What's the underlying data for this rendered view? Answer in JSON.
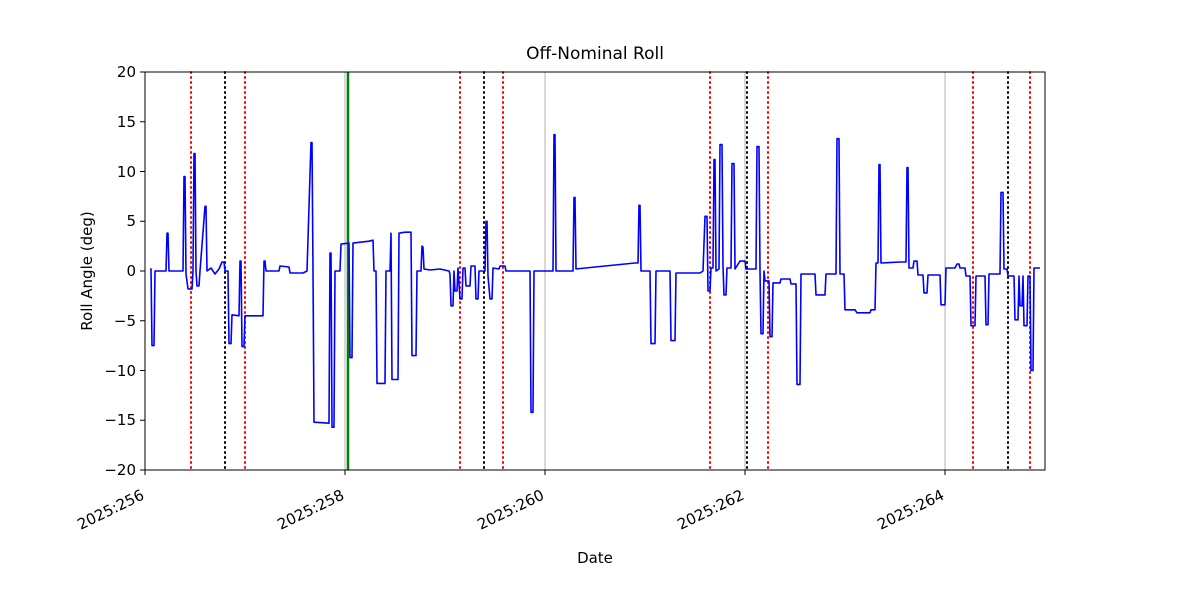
{
  "figure": {
    "background": "#ffffff"
  },
  "chart_data": {
    "type": "line",
    "title": "Off-Nominal Roll",
    "xlabel": "Date",
    "ylabel": "Roll Angle (deg)",
    "xlim": [
      256.0,
      265.0
    ],
    "ylim": [
      -20,
      20
    ],
    "x_ticks": [
      256,
      258,
      260,
      262,
      264
    ],
    "x_tick_labels": [
      "2025:256",
      "2025:258",
      "2025:260",
      "2025:262",
      "2025:264"
    ],
    "y_ticks": [
      20,
      15,
      10,
      5,
      0,
      -5,
      -10,
      -15,
      -20
    ],
    "y_tick_labels": [
      "20",
      "15",
      "10",
      "5",
      "0",
      "−5",
      "−10",
      "−15",
      "−20"
    ],
    "grid": "vertical-major-ticks",
    "legend": "none",
    "colors": {
      "line": "#0000ff",
      "red_event": "#ff0000",
      "black_event": "#000000",
      "green_event": "#008000",
      "grid": "#b0b0b0",
      "spine": "#000000"
    },
    "event_lines": {
      "red_dotted": [
        256.46,
        257.0,
        259.15,
        259.58,
        261.65,
        262.23,
        264.28,
        264.85
      ],
      "black_dotted": [
        256.8,
        259.39,
        262.02,
        264.63
      ],
      "green_solid": [
        258.03
      ]
    },
    "series": [
      {
        "name": "roll_angle_deg",
        "color": "#0000ff",
        "points": [
          [
            256.05,
            0.2
          ],
          [
            256.06,
            0.2
          ],
          [
            256.07,
            -7.5
          ],
          [
            256.09,
            -7.5
          ],
          [
            256.1,
            0.0
          ],
          [
            256.21,
            0.0
          ],
          [
            256.22,
            3.8
          ],
          [
            256.23,
            3.8
          ],
          [
            256.24,
            0.0
          ],
          [
            256.38,
            0.0
          ],
          [
            256.39,
            9.5
          ],
          [
            256.4,
            9.5
          ],
          [
            256.41,
            -0.3
          ],
          [
            256.43,
            -1.8
          ],
          [
            256.47,
            -1.8
          ],
          [
            256.48,
            0.0
          ],
          [
            256.49,
            11.8
          ],
          [
            256.5,
            11.8
          ],
          [
            256.51,
            0.0
          ],
          [
            256.52,
            -1.5
          ],
          [
            256.54,
            -1.5
          ],
          [
            256.55,
            0.0
          ],
          [
            256.6,
            6.5
          ],
          [
            256.61,
            6.5
          ],
          [
            256.62,
            0.0
          ],
          [
            256.66,
            0.3
          ],
          [
            256.7,
            -0.3
          ],
          [
            256.74,
            0.2
          ],
          [
            256.77,
            0.9
          ],
          [
            256.79,
            0.9
          ],
          [
            256.8,
            0.0
          ],
          [
            256.83,
            0.0
          ],
          [
            256.84,
            -7.3
          ],
          [
            256.86,
            -7.3
          ],
          [
            256.87,
            -4.4
          ],
          [
            256.94,
            -4.5
          ],
          [
            256.95,
            1.0
          ],
          [
            256.96,
            1.0
          ],
          [
            256.97,
            -7.6
          ],
          [
            256.99,
            -7.6
          ],
          [
            257.0,
            -4.5
          ],
          [
            257.18,
            -4.5
          ],
          [
            257.19,
            1.0
          ],
          [
            257.2,
            1.0
          ],
          [
            257.21,
            0.0
          ],
          [
            257.34,
            0.0
          ],
          [
            257.35,
            0.5
          ],
          [
            257.44,
            0.4
          ],
          [
            257.45,
            -0.2
          ],
          [
            257.58,
            -0.2
          ],
          [
            257.62,
            0.0
          ],
          [
            257.66,
            12.9
          ],
          [
            257.67,
            12.9
          ],
          [
            257.68,
            0.0
          ],
          [
            257.69,
            -15.2
          ],
          [
            257.84,
            -15.3
          ],
          [
            257.85,
            1.8
          ],
          [
            257.86,
            1.8
          ],
          [
            257.87,
            -15.7
          ],
          [
            257.89,
            -15.7
          ],
          [
            257.9,
            0.0
          ],
          [
            257.95,
            0.0
          ],
          [
            257.96,
            2.7
          ],
          [
            258.04,
            2.8
          ],
          [
            258.05,
            -8.7
          ],
          [
            258.07,
            -8.7
          ],
          [
            258.08,
            2.8
          ],
          [
            258.24,
            3.0
          ],
          [
            258.28,
            3.1
          ],
          [
            258.29,
            0.0
          ],
          [
            258.31,
            0.0
          ],
          [
            258.32,
            -11.3
          ],
          [
            258.4,
            -11.3
          ],
          [
            258.41,
            0.0
          ],
          [
            258.45,
            0.0
          ],
          [
            258.46,
            3.8
          ],
          [
            258.47,
            -10.9
          ],
          [
            258.53,
            -10.9
          ],
          [
            258.54,
            3.8
          ],
          [
            258.6,
            3.9
          ],
          [
            258.66,
            3.9
          ],
          [
            258.67,
            -8.5
          ],
          [
            258.71,
            -8.5
          ],
          [
            258.72,
            0.0
          ],
          [
            258.76,
            0.0
          ],
          [
            258.77,
            2.5
          ],
          [
            258.78,
            2.4
          ],
          [
            258.79,
            0.2
          ],
          [
            258.85,
            0.1
          ],
          [
            258.95,
            0.2
          ],
          [
            259.04,
            0.0
          ],
          [
            259.05,
            -0.3
          ],
          [
            259.06,
            -3.5
          ],
          [
            259.08,
            -3.5
          ],
          [
            259.09,
            0.0
          ],
          [
            259.1,
            -2.0
          ],
          [
            259.12,
            -2.0
          ],
          [
            259.13,
            0.3
          ],
          [
            259.15,
            -2.8
          ],
          [
            259.17,
            -2.8
          ],
          [
            259.18,
            0.3
          ],
          [
            259.2,
            0.3
          ],
          [
            259.21,
            -1.5
          ],
          [
            259.25,
            -1.5
          ],
          [
            259.26,
            0.5
          ],
          [
            259.3,
            0.5
          ],
          [
            259.31,
            -2.8
          ],
          [
            259.33,
            -2.8
          ],
          [
            259.34,
            0.0
          ],
          [
            259.4,
            0.0
          ],
          [
            259.41,
            5.0
          ],
          [
            259.42,
            5.0
          ],
          [
            259.43,
            -0.5
          ],
          [
            259.45,
            -2.8
          ],
          [
            259.47,
            -2.8
          ],
          [
            259.48,
            0.3
          ],
          [
            259.54,
            0.2
          ],
          [
            259.55,
            0.5
          ],
          [
            259.6,
            0.5
          ],
          [
            259.61,
            0.0
          ],
          [
            259.85,
            0.0
          ],
          [
            259.86,
            -14.2
          ],
          [
            259.88,
            -14.2
          ],
          [
            259.89,
            0.0
          ],
          [
            260.08,
            0.0
          ],
          [
            260.09,
            13.7
          ],
          [
            260.1,
            13.7
          ],
          [
            260.11,
            0.0
          ],
          [
            260.28,
            0.0
          ],
          [
            260.29,
            7.4
          ],
          [
            260.3,
            7.4
          ],
          [
            260.31,
            0.2
          ],
          [
            260.5,
            0.4
          ],
          [
            260.9,
            0.8
          ],
          [
            260.93,
            0.8
          ],
          [
            260.94,
            6.6
          ],
          [
            260.95,
            6.6
          ],
          [
            260.96,
            0.0
          ],
          [
            261.05,
            0.0
          ],
          [
            261.06,
            -7.3
          ],
          [
            261.1,
            -7.3
          ],
          [
            261.11,
            0.0
          ],
          [
            261.25,
            0.0
          ],
          [
            261.26,
            -7.0
          ],
          [
            261.3,
            -7.0
          ],
          [
            261.31,
            -0.2
          ],
          [
            261.55,
            -0.2
          ],
          [
            261.58,
            0.0
          ],
          [
            261.6,
            5.5
          ],
          [
            261.62,
            5.5
          ],
          [
            261.63,
            -2.0
          ],
          [
            261.65,
            -2.0
          ],
          [
            261.66,
            0.3
          ],
          [
            261.68,
            0.3
          ],
          [
            261.69,
            11.2
          ],
          [
            261.7,
            11.2
          ],
          [
            261.71,
            0.0
          ],
          [
            261.74,
            0.2
          ],
          [
            261.75,
            12.7
          ],
          [
            261.77,
            12.7
          ],
          [
            261.78,
            0.5
          ],
          [
            261.79,
            -2.4
          ],
          [
            261.81,
            -2.4
          ],
          [
            261.82,
            0.3
          ],
          [
            261.86,
            0.3
          ],
          [
            261.87,
            10.8
          ],
          [
            261.89,
            10.8
          ],
          [
            261.9,
            0.2
          ],
          [
            261.95,
            1.0
          ],
          [
            262.0,
            1.0
          ],
          [
            262.01,
            0.2
          ],
          [
            262.11,
            0.2
          ],
          [
            262.12,
            12.5
          ],
          [
            262.14,
            12.5
          ],
          [
            262.15,
            0.0
          ],
          [
            262.16,
            -6.3
          ],
          [
            262.18,
            -6.3
          ],
          [
            262.19,
            0.0
          ],
          [
            262.2,
            -1.0
          ],
          [
            262.24,
            -1.0
          ],
          [
            262.25,
            -6.6
          ],
          [
            262.27,
            -6.6
          ],
          [
            262.28,
            -1.2
          ],
          [
            262.35,
            -1.2
          ],
          [
            262.36,
            -0.8
          ],
          [
            262.45,
            -0.8
          ],
          [
            262.46,
            -1.3
          ],
          [
            262.51,
            -1.3
          ],
          [
            262.52,
            -11.4
          ],
          [
            262.55,
            -11.4
          ],
          [
            262.56,
            -0.3
          ],
          [
            262.7,
            -0.3
          ],
          [
            262.71,
            -2.4
          ],
          [
            262.8,
            -2.4
          ],
          [
            262.81,
            -0.3
          ],
          [
            262.91,
            -0.3
          ],
          [
            262.92,
            13.3
          ],
          [
            262.94,
            13.3
          ],
          [
            262.95,
            -0.3
          ],
          [
            262.99,
            -0.3
          ],
          [
            263.0,
            -3.9
          ],
          [
            263.1,
            -3.9
          ],
          [
            263.12,
            -4.2
          ],
          [
            263.25,
            -4.2
          ],
          [
            263.26,
            -3.9
          ],
          [
            263.3,
            -3.9
          ],
          [
            263.31,
            0.8
          ],
          [
            263.33,
            0.8
          ],
          [
            263.34,
            10.7
          ],
          [
            263.35,
            10.7
          ],
          [
            263.36,
            0.8
          ],
          [
            263.55,
            0.9
          ],
          [
            263.61,
            0.9
          ],
          [
            263.62,
            10.4
          ],
          [
            263.63,
            10.4
          ],
          [
            263.64,
            0.3
          ],
          [
            263.68,
            0.3
          ],
          [
            263.69,
            1.0
          ],
          [
            263.72,
            1.0
          ],
          [
            263.73,
            -0.4
          ],
          [
            263.78,
            -0.4
          ],
          [
            263.79,
            -2.2
          ],
          [
            263.82,
            -2.2
          ],
          [
            263.83,
            -0.4
          ],
          [
            263.95,
            -0.4
          ],
          [
            263.96,
            -3.4
          ],
          [
            264.0,
            -3.4
          ],
          [
            264.01,
            0.3
          ],
          [
            264.1,
            0.3
          ],
          [
            264.12,
            0.7
          ],
          [
            264.14,
            0.7
          ],
          [
            264.15,
            0.3
          ],
          [
            264.2,
            0.3
          ],
          [
            264.21,
            -0.5
          ],
          [
            264.25,
            -0.5
          ],
          [
            264.26,
            -5.5
          ],
          [
            264.3,
            -5.5
          ],
          [
            264.31,
            -0.5
          ],
          [
            264.4,
            -0.5
          ],
          [
            264.41,
            -5.4
          ],
          [
            264.43,
            -5.4
          ],
          [
            264.44,
            -0.3
          ],
          [
            264.55,
            -0.3
          ],
          [
            264.56,
            7.9
          ],
          [
            264.58,
            7.9
          ],
          [
            264.59,
            0.2
          ],
          [
            264.62,
            0.2
          ],
          [
            264.63,
            -0.5
          ],
          [
            264.69,
            -0.5
          ],
          [
            264.7,
            -4.9
          ],
          [
            264.73,
            -4.9
          ],
          [
            264.74,
            -0.5
          ],
          [
            264.75,
            -3.5
          ],
          [
            264.77,
            -3.5
          ],
          [
            264.78,
            -0.5
          ],
          [
            264.79,
            -5.5
          ],
          [
            264.82,
            -5.5
          ],
          [
            264.83,
            -0.5
          ],
          [
            264.85,
            -0.5
          ],
          [
            264.86,
            -10.0
          ],
          [
            264.88,
            -10.0
          ],
          [
            264.89,
            0.3
          ],
          [
            264.95,
            0.3
          ]
        ]
      }
    ]
  }
}
